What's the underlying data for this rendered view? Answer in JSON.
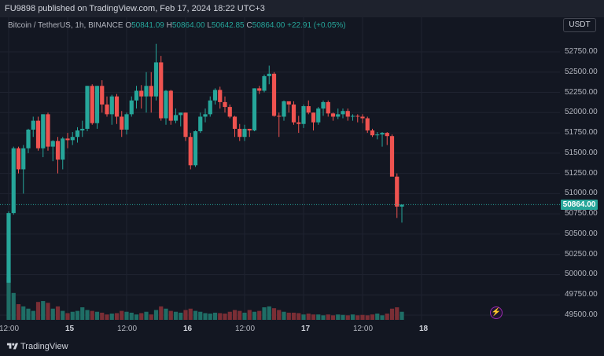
{
  "header": {
    "text": "FU9898 published on TradingView.com, Feb 17, 2024 18:22 UTC+3"
  },
  "legend": {
    "symbol": "Bitcoin / TetherUS, 1h, BINANCE",
    "o_label": "O",
    "o_value": "50841.09",
    "h_label": "H",
    "h_value": "50864.00",
    "l_label": "L",
    "l_value": "50642.85",
    "c_label": "C",
    "c_value": "50864.00",
    "change": "+22.91 (+0.05%)"
  },
  "currency_button": "USDT",
  "last_price": "50864.00",
  "footer_brand": "TradingView",
  "colors": {
    "up": "#26a69a",
    "down": "#ef5350",
    "up_vol": "#1f6e66",
    "down_vol": "#7a2e35",
    "bg": "#131722"
  },
  "chart_data": {
    "type": "candlestick",
    "symbol": "BTCUSDT",
    "interval": "1h",
    "y_ticks": [
      {
        "value": 52750,
        "label": "52750.00"
      },
      {
        "value": 52500,
        "label": "52500.00"
      },
      {
        "value": 52250,
        "label": "52250.00"
      },
      {
        "value": 52000,
        "label": "52000.00"
      },
      {
        "value": 51750,
        "label": "51750.00"
      },
      {
        "value": 51500,
        "label": "51500.00"
      },
      {
        "value": 51250,
        "label": "51250.00"
      },
      {
        "value": 51000,
        "label": "51000.00"
      },
      {
        "value": 50750,
        "label": "50750.00"
      },
      {
        "value": 50500,
        "label": "50500.00"
      },
      {
        "value": 50250,
        "label": "50250.00"
      },
      {
        "value": 50000,
        "label": "50000.00"
      },
      {
        "value": 49750,
        "label": "49750.00"
      },
      {
        "value": 49500,
        "label": "49500.00"
      }
    ],
    "x_ticks": [
      {
        "index": 0,
        "label": "12:00",
        "bold": false
      },
      {
        "index": 12,
        "label": "15",
        "bold": true
      },
      {
        "index": 24,
        "label": "12:00",
        "bold": false
      },
      {
        "index": 36,
        "label": "16",
        "bold": true
      },
      {
        "index": 48,
        "label": "12:00",
        "bold": false
      },
      {
        "index": 60,
        "label": "17",
        "bold": true
      },
      {
        "index": 72,
        "label": "12:00",
        "bold": false
      },
      {
        "index": 84,
        "label": "18",
        "bold": true
      }
    ],
    "candles": [
      [
        49900,
        50780,
        49900,
        50760,
        95
      ],
      [
        50760,
        51580,
        50740,
        51560,
        60
      ],
      [
        51560,
        51580,
        51250,
        51300,
        35
      ],
      [
        51300,
        51600,
        51000,
        51560,
        30
      ],
      [
        51560,
        51800,
        51500,
        51790,
        25
      ],
      [
        51790,
        51950,
        51700,
        51900,
        20
      ],
      [
        51900,
        51950,
        51530,
        51560,
        40
      ],
      [
        51560,
        51980,
        51450,
        51980,
        42
      ],
      [
        51980,
        52000,
        51530,
        51580,
        38
      ],
      [
        51580,
        51660,
        51400,
        51650,
        25
      ],
      [
        51650,
        51700,
        51250,
        51420,
        30
      ],
      [
        51420,
        51700,
        51300,
        51680,
        20
      ],
      [
        51680,
        51750,
        51560,
        51660,
        15
      ],
      [
        51660,
        51760,
        51600,
        51700,
        18
      ],
      [
        51700,
        51820,
        51630,
        51780,
        20
      ],
      [
        51780,
        51900,
        51700,
        51800,
        28
      ],
      [
        51800,
        52330,
        51770,
        52330,
        22
      ],
      [
        52330,
        52350,
        51850,
        51870,
        20
      ],
      [
        51870,
        52330,
        51800,
        52330,
        18
      ],
      [
        52330,
        52400,
        52000,
        52100,
        16
      ],
      [
        52100,
        52200,
        51950,
        51980,
        12
      ],
      [
        51980,
        52220,
        51850,
        52200,
        14
      ],
      [
        52200,
        52230,
        51860,
        51950,
        15
      ],
      [
        51950,
        52020,
        51700,
        51790,
        20
      ],
      [
        51790,
        52000,
        51730,
        51980,
        18
      ],
      [
        51980,
        52200,
        51950,
        52150,
        16
      ],
      [
        52150,
        52330,
        52050,
        52270,
        12
      ],
      [
        52270,
        52340,
        52050,
        52200,
        15
      ],
      [
        52200,
        52500,
        52000,
        52330,
        18
      ],
      [
        52330,
        52500,
        52000,
        52200,
        12
      ],
      [
        52200,
        52850,
        52150,
        52620,
        22
      ],
      [
        52620,
        52700,
        51900,
        51930,
        30
      ],
      [
        51930,
        52280,
        51850,
        52270,
        25
      ],
      [
        52270,
        52280,
        51850,
        51900,
        20
      ],
      [
        51900,
        52050,
        51870,
        51970,
        18
      ],
      [
        51970,
        52000,
        51830,
        52000,
        16
      ],
      [
        52000,
        52000,
        51650,
        51700,
        22
      ],
      [
        51700,
        51750,
        51300,
        51350,
        25
      ],
      [
        51350,
        51780,
        51330,
        51770,
        20
      ],
      [
        51770,
        52000,
        51750,
        51950,
        18
      ],
      [
        51950,
        52050,
        51880,
        51980,
        15
      ],
      [
        51980,
        52200,
        51950,
        52150,
        14
      ],
      [
        52150,
        52300,
        52100,
        52280,
        16
      ],
      [
        52280,
        52320,
        52050,
        52130,
        15
      ],
      [
        52130,
        52200,
        52000,
        52070,
        14
      ],
      [
        52070,
        52100,
        51930,
        51950,
        18
      ],
      [
        51950,
        51960,
        51700,
        51800,
        22
      ],
      [
        51800,
        51860,
        51650,
        51700,
        20
      ],
      [
        51700,
        51850,
        51650,
        51800,
        16
      ],
      [
        51800,
        51800,
        51700,
        51780,
        22
      ],
      [
        51780,
        52300,
        51770,
        52300,
        18
      ],
      [
        52300,
        52330,
        52230,
        52270,
        20
      ],
      [
        52270,
        52470,
        52250,
        52450,
        28
      ],
      [
        52450,
        52580,
        52350,
        52480,
        30
      ],
      [
        52480,
        52500,
        51950,
        51960,
        26
      ],
      [
        51960,
        52000,
        51700,
        51950,
        22
      ],
      [
        51950,
        52150,
        51900,
        52140,
        18
      ],
      [
        52140,
        52120,
        52000,
        52100,
        16
      ],
      [
        52100,
        52140,
        51850,
        51880,
        16
      ],
      [
        51880,
        51960,
        51750,
        51860,
        15
      ],
      [
        51860,
        52100,
        51810,
        52080,
        12
      ],
      [
        52080,
        52150,
        51980,
        52000,
        14
      ],
      [
        52000,
        52000,
        51780,
        51880,
        12
      ],
      [
        51880,
        52070,
        51850,
        52050,
        12
      ],
      [
        52050,
        52150,
        51960,
        52130,
        10
      ],
      [
        52130,
        52150,
        51950,
        51990,
        12
      ],
      [
        51990,
        52000,
        51900,
        51950,
        10
      ],
      [
        51950,
        52050,
        51920,
        51980,
        12
      ],
      [
        51980,
        52050,
        51930,
        52020,
        11
      ],
      [
        52020,
        52050,
        51900,
        51950,
        10
      ],
      [
        51950,
        51980,
        51900,
        51960,
        12
      ],
      [
        51960,
        51980,
        51880,
        51950,
        10
      ],
      [
        51950,
        51980,
        51870,
        51930,
        11
      ],
      [
        51930,
        51950,
        51750,
        51780,
        10
      ],
      [
        51780,
        51800,
        51700,
        51720,
        12
      ],
      [
        51720,
        51760,
        51670,
        51730,
        14
      ],
      [
        51730,
        51760,
        51580,
        51750,
        10
      ],
      [
        51750,
        51760,
        51600,
        51710,
        14
      ],
      [
        51710,
        51730,
        51220,
        51210,
        25
      ],
      [
        51210,
        51250,
        50700,
        50840,
        28
      ],
      [
        50840,
        50864,
        50642.85,
        50864,
        18
      ]
    ],
    "last_price": 50864.0,
    "y_range": [
      49450,
      52900
    ]
  }
}
